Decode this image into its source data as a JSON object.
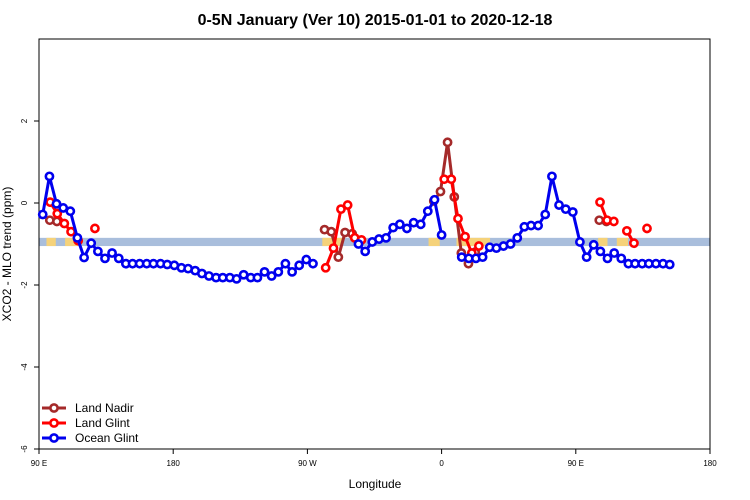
{
  "chart_data": {
    "type": "line",
    "title": "0-5N January (Ver 10)   2015-01-01 to 2020-12-18",
    "xlabel": "Longitude",
    "ylabel": "XCO2 - MLO trend (ppm)",
    "xlim": [
      90,
      270
    ],
    "ylim": [
      -6,
      4
    ],
    "grid": false,
    "legend_position": "bottom-left",
    "x_ticks": [
      {
        "value": 90,
        "label": "90 E"
      },
      {
        "value": 126,
        "label": "180"
      },
      {
        "value": 162,
        "label": "90 W"
      },
      {
        "value": 198,
        "label": "0"
      },
      {
        "value": 234,
        "label": "90 E"
      },
      {
        "value": 270,
        "label": "180"
      }
    ],
    "y_ticks": [
      {
        "value": -6,
        "label": "-6"
      },
      {
        "value": -4,
        "label": "-4"
      },
      {
        "value": -2,
        "label": "-2"
      },
      {
        "value": 0,
        "label": "0"
      },
      {
        "value": 2,
        "label": "2"
      }
    ],
    "surface_band": {
      "y_range": [
        -1.05,
        -0.85
      ],
      "ocean_color": "#a9bedc",
      "land_color": "#f5d27a",
      "land_segments": [
        [
          92,
          94.5
        ],
        [
          97,
          101
        ],
        [
          166,
          171.5
        ],
        [
          194.5,
          197.5
        ],
        [
          202,
          211
        ],
        [
          240,
          242.5
        ],
        [
          245,
          248
        ]
      ]
    },
    "series": [
      {
        "name": "Land Nadir",
        "color": "#a52a2a",
        "segments": [
          [
            [
              92.9,
              -0.42
            ],
            [
              94.8,
              -0.45
            ]
          ],
          [
            [
              166.6,
              -0.65
            ],
            [
              168.4,
              -0.7
            ],
            [
              170.3,
              -1.32
            ],
            [
              172.1,
              -0.72
            ],
            [
              174.0,
              -0.75
            ],
            [
              175.8,
              -0.98
            ]
          ],
          [
            [
              195.9,
              0.05
            ],
            [
              197.7,
              0.28
            ],
            [
              199.6,
              1.48
            ],
            [
              201.4,
              0.15
            ],
            [
              203.3,
              -1.22
            ],
            [
              205.2,
              -1.48
            ],
            [
              207.0,
              -1.2
            ]
          ],
          [
            [
              240.3,
              -0.42
            ],
            [
              242.2,
              -0.45
            ]
          ]
        ]
      },
      {
        "name": "Land Glint",
        "color": "#ff0000",
        "segments": [
          [
            [
              93.0,
              0.02
            ],
            [
              94.9,
              -0.26
            ],
            [
              96.8,
              -0.5
            ],
            [
              98.6,
              -0.7
            ],
            [
              100.5,
              -0.92
            ]
          ],
          [
            [
              105.0,
              -0.62
            ]
          ],
          [
            [
              166.9,
              -1.58
            ],
            [
              169.0,
              -1.1
            ],
            [
              171.0,
              -0.15
            ],
            [
              172.8,
              -0.05
            ],
            [
              174.7,
              -0.85
            ],
            [
              176.5,
              -0.9
            ]
          ],
          [
            [
              198.7,
              0.58
            ],
            [
              200.6,
              0.58
            ],
            [
              202.4,
              -0.38
            ],
            [
              204.3,
              -0.82
            ],
            [
              206.1,
              -1.22
            ],
            [
              208.0,
              -1.05
            ]
          ],
          [
            [
              240.5,
              0.02
            ],
            [
              242.4,
              -0.42
            ],
            [
              244.2,
              -0.45
            ]
          ],
          [
            [
              247.7,
              -0.68
            ],
            [
              249.6,
              -0.98
            ]
          ],
          [
            [
              253.1,
              -0.62
            ]
          ]
        ]
      },
      {
        "name": "Ocean Glint",
        "color": "#0000ee",
        "segments": [
          [
            [
              91.0,
              -0.28
            ],
            [
              92.8,
              0.65
            ],
            [
              94.7,
              -0.02
            ],
            [
              96.5,
              -0.12
            ],
            [
              98.4,
              -0.2
            ],
            [
              100.3,
              -0.85
            ],
            [
              102.1,
              -1.33
            ],
            [
              104.0,
              -0.98
            ],
            [
              105.8,
              -1.18
            ],
            [
              107.7,
              -1.35
            ],
            [
              109.6,
              -1.22
            ],
            [
              111.4,
              -1.35
            ],
            [
              113.3,
              -1.48
            ],
            [
              115.1,
              -1.48
            ],
            [
              117.0,
              -1.48
            ],
            [
              118.9,
              -1.48
            ],
            [
              120.7,
              -1.48
            ],
            [
              122.6,
              -1.48
            ],
            [
              124.4,
              -1.5
            ],
            [
              126.3,
              -1.52
            ],
            [
              128.2,
              -1.58
            ],
            [
              130.0,
              -1.6
            ],
            [
              131.9,
              -1.65
            ],
            [
              133.7,
              -1.72
            ],
            [
              135.6,
              -1.78
            ],
            [
              137.5,
              -1.82
            ],
            [
              139.3,
              -1.82
            ],
            [
              141.2,
              -1.82
            ],
            [
              143.0,
              -1.85
            ],
            [
              144.9,
              -1.75
            ],
            [
              146.8,
              -1.82
            ],
            [
              148.6,
              -1.82
            ],
            [
              150.5,
              -1.68
            ],
            [
              152.4,
              -1.78
            ],
            [
              154.2,
              -1.68
            ],
            [
              156.1,
              -1.48
            ],
            [
              157.9,
              -1.68
            ],
            [
              159.8,
              -1.52
            ],
            [
              161.7,
              -1.38
            ],
            [
              163.5,
              -1.48
            ]
          ],
          [
            [
              175.7,
              -1.0
            ],
            [
              177.5,
              -1.18
            ],
            [
              179.4,
              -0.95
            ],
            [
              181.2,
              -0.88
            ],
            [
              183.1,
              -0.85
            ],
            [
              185.0,
              -0.6
            ],
            [
              186.8,
              -0.52
            ],
            [
              188.7,
              -0.62
            ],
            [
              190.5,
              -0.48
            ],
            [
              192.4,
              -0.52
            ],
            [
              194.3,
              -0.2
            ],
            [
              196.1,
              0.08
            ],
            [
              198.0,
              -0.78
            ]
          ],
          [
            [
              203.4,
              -1.32
            ],
            [
              205.3,
              -1.35
            ],
            [
              207.2,
              -1.35
            ],
            [
              209.0,
              -1.32
            ],
            [
              210.9,
              -1.08
            ],
            [
              212.7,
              -1.1
            ],
            [
              214.6,
              -1.05
            ],
            [
              216.5,
              -1.0
            ],
            [
              218.3,
              -0.85
            ],
            [
              220.2,
              -0.58
            ],
            [
              222.0,
              -0.55
            ],
            [
              223.9,
              -0.55
            ],
            [
              225.8,
              -0.28
            ],
            [
              227.6,
              0.65
            ],
            [
              229.5,
              -0.05
            ],
            [
              231.3,
              -0.15
            ],
            [
              233.2,
              -0.22
            ],
            [
              235.1,
              -0.95
            ],
            [
              236.9,
              -1.32
            ],
            [
              238.8,
              -1.02
            ],
            [
              240.6,
              -1.18
            ],
            [
              242.5,
              -1.35
            ],
            [
              244.3,
              -1.22
            ],
            [
              246.2,
              -1.35
            ],
            [
              248.1,
              -1.48
            ],
            [
              249.9,
              -1.48
            ],
            [
              251.8,
              -1.48
            ],
            [
              253.6,
              -1.48
            ],
            [
              255.5,
              -1.48
            ],
            [
              257.4,
              -1.48
            ],
            [
              259.2,
              -1.5
            ]
          ]
        ]
      }
    ]
  }
}
